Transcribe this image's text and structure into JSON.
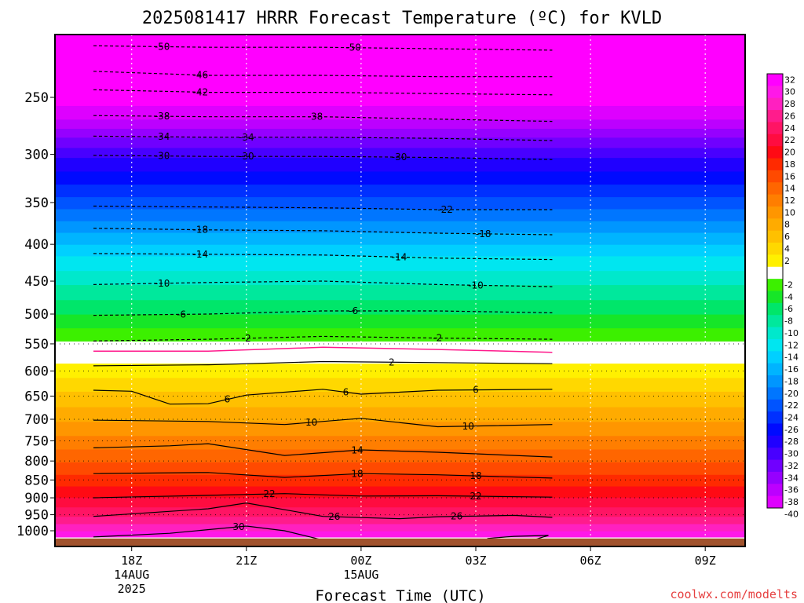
{
  "title": "2025081417 HRRR Forecast Temperature (ºC) for KVLD",
  "xlabel": "Forecast Time (UTC)",
  "credit": "coolwx.com/modelts",
  "chart_data": {
    "type": "heatmap",
    "title": "2025081417 HRRR Forecast Temperature (ºC) for KVLD",
    "xlabel": "Forecast Time (UTC)",
    "ylabel": "",
    "y_axis": "pressure (hPa), log scale, inverted",
    "ylim": [
      1050,
      200
    ],
    "xlim": [
      "2025-08-14 17Z",
      "2025-08-15 11Z"
    ],
    "grid": "dotted vertical lines at x ticks, dotted horizontal lines in lower levels",
    "colorbar_placement": "right",
    "x_ticks": [
      {
        "label": "18Z",
        "sub": [
          "14AUG",
          "2025"
        ],
        "time": "2025-08-14 18Z"
      },
      {
        "label": "21Z",
        "sub": [],
        "time": "2025-08-14 21Z"
      },
      {
        "label": "00Z",
        "sub": [
          "15AUG"
        ],
        "time": "2025-08-15 00Z"
      },
      {
        "label": "03Z",
        "sub": [],
        "time": "2025-08-15 03Z"
      },
      {
        "label": "06Z",
        "sub": [],
        "time": "2025-08-15 06Z"
      },
      {
        "label": "09Z",
        "sub": [],
        "time": "2025-08-15 09Z"
      }
    ],
    "y_ticks": [
      250,
      300,
      350,
      400,
      450,
      500,
      550,
      600,
      650,
      700,
      750,
      800,
      850,
      900,
      950,
      1000
    ],
    "colorbar_ticks": [
      32,
      30,
      28,
      26,
      24,
      22,
      20,
      18,
      16,
      14,
      12,
      10,
      8,
      6,
      4,
      2,
      -2,
      -4,
      -6,
      -8,
      -10,
      -12,
      -14,
      -16,
      -18,
      -20,
      -22,
      -24,
      -26,
      -28,
      -30,
      -32,
      -34,
      -36,
      -38,
      -40
    ],
    "color_bands": [
      {
        "from": 32,
        "to": 34,
        "color": "#ff00ff"
      },
      {
        "from": 30,
        "to": 32,
        "color": "#ff18e8"
      },
      {
        "from": 28,
        "to": 30,
        "color": "#ff20c0"
      },
      {
        "from": 26,
        "to": 28,
        "color": "#ff1c8c"
      },
      {
        "from": 24,
        "to": 26,
        "color": "#ff1464"
      },
      {
        "from": 22,
        "to": 24,
        "color": "#ff0c40"
      },
      {
        "from": 20,
        "to": 22,
        "color": "#ff0a14"
      },
      {
        "from": 18,
        "to": 20,
        "color": "#ff2a00"
      },
      {
        "from": 16,
        "to": 18,
        "color": "#ff4a00"
      },
      {
        "from": 14,
        "to": 16,
        "color": "#ff6600"
      },
      {
        "from": 12,
        "to": 14,
        "color": "#ff7e00"
      },
      {
        "from": 10,
        "to": 12,
        "color": "#ff9600"
      },
      {
        "from": 8,
        "to": 10,
        "color": "#ffab00"
      },
      {
        "from": 6,
        "to": 8,
        "color": "#ffc000"
      },
      {
        "from": 4,
        "to": 6,
        "color": "#ffd800"
      },
      {
        "from": 2,
        "to": 4,
        "color": "#fff000"
      },
      {
        "from": -2,
        "to": 2,
        "color": "#ffffff"
      },
      {
        "from": -4,
        "to": -2,
        "color": "#3cf000"
      },
      {
        "from": -6,
        "to": -4,
        "color": "#16e628"
      },
      {
        "from": -8,
        "to": -6,
        "color": "#00e66a"
      },
      {
        "from": -10,
        "to": -8,
        "color": "#00e89c"
      },
      {
        "from": -12,
        "to": -10,
        "color": "#00e8cc"
      },
      {
        "from": -14,
        "to": -12,
        "color": "#00e6f0"
      },
      {
        "from": -16,
        "to": -14,
        "color": "#00d0ff"
      },
      {
        "from": -18,
        "to": -16,
        "color": "#00b4ff"
      },
      {
        "from": -20,
        "to": -18,
        "color": "#0096ff"
      },
      {
        "from": -22,
        "to": -20,
        "color": "#0076ff"
      },
      {
        "from": -24,
        "to": -22,
        "color": "#0054ff"
      },
      {
        "from": -26,
        "to": -24,
        "color": "#0030ff"
      },
      {
        "from": -28,
        "to": -26,
        "color": "#000aff"
      },
      {
        "from": -30,
        "to": -28,
        "color": "#2000ff"
      },
      {
        "from": -32,
        "to": -30,
        "color": "#4800ff"
      },
      {
        "from": -34,
        "to": -32,
        "color": "#7000ff"
      },
      {
        "from": -36,
        "to": -34,
        "color": "#9600ff"
      },
      {
        "from": -38,
        "to": -36,
        "color": "#bc00ff"
      },
      {
        "from": -40,
        "to": -38,
        "color": "#de00ff"
      },
      {
        "from": -52,
        "to": -40,
        "color": "#ff00ff"
      }
    ],
    "temperature_profile": [
      {
        "pressure": 200,
        "temp": -53
      },
      {
        "pressure": 215,
        "temp": -50
      },
      {
        "pressure": 233,
        "temp": -46
      },
      {
        "pressure": 246,
        "temp": -42
      },
      {
        "pressure": 268,
        "temp": -38
      },
      {
        "pressure": 284,
        "temp": -34
      },
      {
        "pressure": 303,
        "temp": -30
      },
      {
        "pressure": 330,
        "temp": -26
      },
      {
        "pressure": 357,
        "temp": -22
      },
      {
        "pressure": 385,
        "temp": -18
      },
      {
        "pressure": 415,
        "temp": -14
      },
      {
        "pressure": 455,
        "temp": -10
      },
      {
        "pressure": 500,
        "temp": -6
      },
      {
        "pressure": 545,
        "temp": -2
      },
      {
        "pressure": 565,
        "temp": 0
      },
      {
        "pressure": 585,
        "temp": 2
      },
      {
        "pressure": 640,
        "temp": 6
      },
      {
        "pressure": 705,
        "temp": 10
      },
      {
        "pressure": 770,
        "temp": 14
      },
      {
        "pressure": 835,
        "temp": 18
      },
      {
        "pressure": 898,
        "temp": 22
      },
      {
        "pressure": 955,
        "temp": 26
      },
      {
        "pressure": 1000,
        "temp": 30
      },
      {
        "pressure": 1020,
        "temp": 31
      }
    ],
    "contours": [
      {
        "value": -50,
        "style": "dashed",
        "points": [
          [
            -1,
            212
          ],
          [
            2,
            213
          ],
          [
            5,
            213
          ],
          [
            8,
            214
          ],
          [
            11,
            215
          ]
        ],
        "labels": [
          {
            "text": "50",
            "x": 0.8
          },
          {
            "text": "50",
            "x": 5.8
          }
        ]
      },
      {
        "value": -46,
        "style": "dashed",
        "points": [
          [
            -1,
            230
          ],
          [
            2,
            233
          ],
          [
            5,
            233
          ],
          [
            8,
            234
          ],
          [
            11,
            234
          ]
        ],
        "labels": [
          {
            "text": "46",
            "x": 1.8
          }
        ]
      },
      {
        "value": -42,
        "style": "dashed",
        "points": [
          [
            -1,
            244
          ],
          [
            2,
            246
          ],
          [
            5,
            246
          ],
          [
            8,
            247
          ],
          [
            11,
            248
          ]
        ],
        "labels": [
          {
            "text": "42",
            "x": 1.8
          }
        ]
      },
      {
        "value": -38,
        "style": "dashed",
        "points": [
          [
            -1,
            265
          ],
          [
            2,
            266
          ],
          [
            5,
            266
          ],
          [
            8,
            268
          ],
          [
            11,
            270
          ]
        ],
        "labels": [
          {
            "text": "38",
            "x": 0.8
          },
          {
            "text": "38",
            "x": 4.8
          }
        ]
      },
      {
        "value": -34,
        "style": "dashed",
        "points": [
          [
            -1,
            283
          ],
          [
            2,
            284
          ],
          [
            5,
            284
          ],
          [
            8,
            285
          ],
          [
            11,
            287
          ]
        ],
        "labels": [
          {
            "text": "34",
            "x": 0.8
          },
          {
            "text": "34",
            "x": 3.0
          }
        ]
      },
      {
        "value": -30,
        "style": "dashed",
        "points": [
          [
            -1,
            301
          ],
          [
            2,
            302
          ],
          [
            5,
            302
          ],
          [
            8,
            303
          ],
          [
            11,
            305
          ]
        ],
        "labels": [
          {
            "text": "30",
            "x": 0.8
          },
          {
            "text": "30",
            "x": 3.0
          },
          {
            "text": "30",
            "x": 7.0
          }
        ]
      },
      {
        "value": -22,
        "style": "dashed",
        "points": [
          [
            -1,
            354
          ],
          [
            2,
            355
          ],
          [
            5,
            356
          ],
          [
            8,
            358
          ],
          [
            11,
            358
          ]
        ],
        "labels": [
          {
            "text": "22",
            "x": 8.2
          }
        ]
      },
      {
        "value": -18,
        "style": "dashed",
        "points": [
          [
            -1,
            380
          ],
          [
            2,
            382
          ],
          [
            5,
            383
          ],
          [
            8,
            386
          ],
          [
            11,
            388
          ]
        ],
        "labels": [
          {
            "text": "18",
            "x": 1.8
          },
          {
            "text": "18",
            "x": 9.2
          }
        ]
      },
      {
        "value": -14,
        "style": "dashed",
        "points": [
          [
            -1,
            412
          ],
          [
            2,
            413
          ],
          [
            5,
            414
          ],
          [
            8,
            418
          ],
          [
            11,
            420
          ]
        ],
        "labels": [
          {
            "text": "14",
            "x": 1.8
          },
          {
            "text": "14",
            "x": 7.0
          }
        ]
      },
      {
        "value": -10,
        "style": "dashed",
        "points": [
          [
            -1,
            455
          ],
          [
            2,
            452
          ],
          [
            5,
            450
          ],
          [
            8,
            455
          ],
          [
            11,
            458
          ]
        ],
        "labels": [
          {
            "text": "10",
            "x": 0.8
          },
          {
            "text": "10",
            "x": 9.0
          }
        ]
      },
      {
        "value": -6,
        "style": "dashed",
        "points": [
          [
            -1,
            502
          ],
          [
            2,
            500
          ],
          [
            5,
            495
          ],
          [
            8,
            495
          ],
          [
            11,
            498
          ]
        ],
        "labels": [
          {
            "text": "6",
            "x": 1.3
          },
          {
            "text": "6",
            "x": 5.8
          }
        ]
      },
      {
        "value": -2,
        "style": "dashed",
        "points": [
          [
            -1,
            545
          ],
          [
            2,
            542
          ],
          [
            5,
            537
          ],
          [
            8,
            540
          ],
          [
            11,
            542
          ]
        ],
        "labels": [
          {
            "text": "2",
            "x": 3.0
          },
          {
            "text": "2",
            "x": 8.0
          }
        ]
      },
      {
        "value": 0,
        "style": "magenta",
        "points": [
          [
            -1,
            563
          ],
          [
            2,
            563
          ],
          [
            5,
            556
          ],
          [
            8,
            560
          ],
          [
            11,
            565
          ]
        ],
        "labels": []
      },
      {
        "value": 2,
        "style": "solid",
        "points": [
          [
            -1,
            590
          ],
          [
            2,
            588
          ],
          [
            5,
            582
          ],
          [
            8,
            584
          ],
          [
            11,
            586
          ]
        ],
        "labels": [
          {
            "text": "2",
            "x": 6.8
          }
        ]
      },
      {
        "value": 6,
        "style": "solid",
        "points": [
          [
            -1,
            638
          ],
          [
            0,
            640
          ],
          [
            1,
            667
          ],
          [
            2,
            666
          ],
          [
            3,
            648
          ],
          [
            5,
            636
          ],
          [
            6,
            646
          ],
          [
            8,
            638
          ],
          [
            11,
            636
          ]
        ],
        "labels": [
          {
            "text": "6",
            "x": 2.5
          },
          {
            "text": "6",
            "x": 5.6
          },
          {
            "text": "6",
            "x": 9.0
          }
        ]
      },
      {
        "value": 10,
        "style": "solid",
        "points": [
          [
            -1,
            702
          ],
          [
            2,
            705
          ],
          [
            4,
            712
          ],
          [
            6,
            698
          ],
          [
            8,
            717
          ],
          [
            11,
            712
          ]
        ],
        "labels": [
          {
            "text": "10",
            "x": 4.7
          },
          {
            "text": "10",
            "x": 8.8
          }
        ]
      },
      {
        "value": 14,
        "style": "solid",
        "points": [
          [
            -1,
            767
          ],
          [
            1,
            762
          ],
          [
            2,
            757
          ],
          [
            4,
            786
          ],
          [
            6,
            772
          ],
          [
            8,
            778
          ],
          [
            11,
            790
          ]
        ],
        "labels": [
          {
            "text": "14",
            "x": 5.9
          }
        ]
      },
      {
        "value": 18,
        "style": "solid",
        "points": [
          [
            -1,
            833
          ],
          [
            2,
            830
          ],
          [
            4,
            843
          ],
          [
            6,
            833
          ],
          [
            8,
            836
          ],
          [
            11,
            845
          ]
        ],
        "labels": [
          {
            "text": "18",
            "x": 5.9
          },
          {
            "text": "18",
            "x": 9.0
          }
        ]
      },
      {
        "value": 22,
        "style": "solid",
        "points": [
          [
            -1,
            900
          ],
          [
            2,
            893
          ],
          [
            4,
            888
          ],
          [
            6,
            895
          ],
          [
            8,
            894
          ],
          [
            11,
            898
          ]
        ],
        "labels": [
          {
            "text": "22",
            "x": 3.6
          },
          {
            "text": "22",
            "x": 9.0
          }
        ]
      },
      {
        "value": 26,
        "style": "solid",
        "points": [
          [
            -1,
            955
          ],
          [
            2,
            932
          ],
          [
            3,
            915
          ],
          [
            5,
            955
          ],
          [
            7,
            962
          ],
          [
            8,
            956
          ],
          [
            10,
            952
          ],
          [
            11,
            958
          ]
        ],
        "labels": [
          {
            "text": "26",
            "x": 5.3
          },
          {
            "text": "26",
            "x": 8.5
          }
        ]
      },
      {
        "value": 30,
        "style": "solid",
        "points": [
          [
            -1,
            1020
          ],
          [
            1,
            1008
          ],
          [
            3,
            985
          ],
          [
            4,
            1000
          ],
          [
            5,
            1030
          ]
        ],
        "labels": [
          {
            "text": "30",
            "x": 2.8
          }
        ]
      },
      {
        "value": 30,
        "style": "solid",
        "points": [
          [
            9.3,
            1025
          ],
          [
            10,
            1018
          ],
          [
            10.9,
            1015
          ],
          [
            10.5,
            1030
          ]
        ],
        "labels": []
      }
    ],
    "ground": {
      "pressure": 1025,
      "color": "#a0522d"
    }
  }
}
